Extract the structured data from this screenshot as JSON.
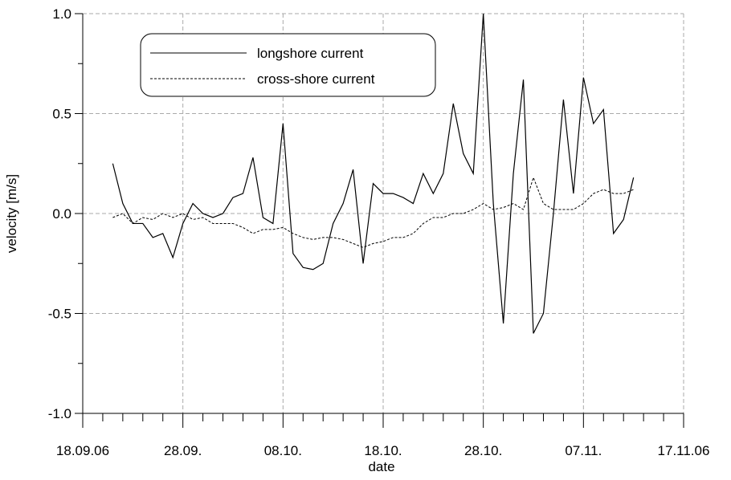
{
  "chart_data": {
    "type": "line",
    "xlabel": "date",
    "ylabel": "velocity [m/s]",
    "x": [
      "2006-09-21",
      "2006-09-22",
      "2006-09-23",
      "2006-09-24",
      "2006-09-25",
      "2006-09-26",
      "2006-09-27",
      "2006-09-28",
      "2006-09-29",
      "2006-09-30",
      "2006-10-01",
      "2006-10-02",
      "2006-10-03",
      "2006-10-04",
      "2006-10-05",
      "2006-10-06",
      "2006-10-07",
      "2006-10-08",
      "2006-10-09",
      "2006-10-10",
      "2006-10-11",
      "2006-10-12",
      "2006-10-13",
      "2006-10-14",
      "2006-10-15",
      "2006-10-16",
      "2006-10-17",
      "2006-10-18",
      "2006-10-19",
      "2006-10-20",
      "2006-10-21",
      "2006-10-22",
      "2006-10-23",
      "2006-10-24",
      "2006-10-25",
      "2006-10-26",
      "2006-10-27",
      "2006-10-28",
      "2006-10-29",
      "2006-10-30",
      "2006-10-31",
      "2006-11-01",
      "2006-11-02",
      "2006-11-03",
      "2006-11-04",
      "2006-11-05",
      "2006-11-06",
      "2006-11-07",
      "2006-11-08",
      "2006-11-09",
      "2006-11-10",
      "2006-11-11",
      "2006-11-12"
    ],
    "series": [
      {
        "name": "longshore current",
        "color": "#000000",
        "style": "solid",
        "values": [
          0.25,
          0.05,
          -0.05,
          -0.05,
          -0.12,
          -0.1,
          -0.22,
          -0.05,
          0.05,
          0.0,
          -0.02,
          0.0,
          0.08,
          0.1,
          0.28,
          -0.02,
          -0.05,
          0.45,
          -0.2,
          -0.27,
          -0.28,
          -0.25,
          -0.05,
          0.05,
          0.22,
          -0.25,
          0.15,
          0.1,
          0.1,
          0.08,
          0.05,
          0.2,
          0.1,
          0.2,
          0.55,
          0.3,
          0.2,
          1.0,
          0.05,
          -0.55,
          0.2,
          0.67,
          -0.6,
          -0.5,
          0.0,
          0.57,
          0.1,
          0.68,
          0.45,
          0.52,
          -0.1,
          -0.03,
          0.18
        ]
      },
      {
        "name": "cross-shore current",
        "color": "#000000",
        "style": "dashed",
        "values": [
          -0.02,
          0.0,
          -0.05,
          -0.02,
          -0.03,
          0.0,
          -0.02,
          0.0,
          -0.03,
          -0.02,
          -0.05,
          -0.05,
          -0.05,
          -0.07,
          -0.1,
          -0.08,
          -0.08,
          -0.07,
          -0.1,
          -0.12,
          -0.13,
          -0.12,
          -0.12,
          -0.13,
          -0.15,
          -0.17,
          -0.15,
          -0.14,
          -0.12,
          -0.12,
          -0.1,
          -0.05,
          -0.02,
          -0.02,
          0.0,
          0.0,
          0.02,
          0.05,
          0.02,
          0.03,
          0.05,
          0.02,
          0.18,
          0.05,
          0.02,
          0.02,
          0.02,
          0.05,
          0.1,
          0.12,
          0.1,
          0.1,
          0.12
        ]
      }
    ],
    "xlim": [
      "2006-09-18",
      "2006-11-17"
    ],
    "xticks": [
      {
        "value": "2006-09-18",
        "label": "18.09.06"
      },
      {
        "value": "2006-09-28",
        "label": "28.09."
      },
      {
        "value": "2006-10-08",
        "label": "08.10."
      },
      {
        "value": "2006-10-18",
        "label": "18.10."
      },
      {
        "value": "2006-10-28",
        "label": "28.10."
      },
      {
        "value": "2006-11-07",
        "label": "07.11."
      },
      {
        "value": "2006-11-17",
        "label": "17.11.06"
      }
    ],
    "xminorticks": [
      "2006-09-20",
      "2006-09-22",
      "2006-09-24",
      "2006-09-26",
      "2006-09-30",
      "2006-10-02",
      "2006-10-04",
      "2006-10-06",
      "2006-10-10",
      "2006-10-12",
      "2006-10-14",
      "2006-10-16",
      "2006-10-20",
      "2006-10-22",
      "2006-10-24",
      "2006-10-26",
      "2006-10-30",
      "2006-11-01",
      "2006-11-03",
      "2006-11-05",
      "2006-11-09",
      "2006-11-11",
      "2006-11-13",
      "2006-11-15"
    ],
    "ylim": [
      -1.0,
      1.0
    ],
    "yticks": [
      {
        "value": -1.0,
        "label": "-1.0"
      },
      -0.5,
      {
        "value": 0.0,
        "label": "0.0"
      },
      0.5,
      {
        "value": 1.0,
        "label": "1.0"
      }
    ],
    "yminorticks": [
      -0.75,
      -0.25,
      0.25,
      0.75
    ],
    "grid": true,
    "legend": "upper left"
  }
}
